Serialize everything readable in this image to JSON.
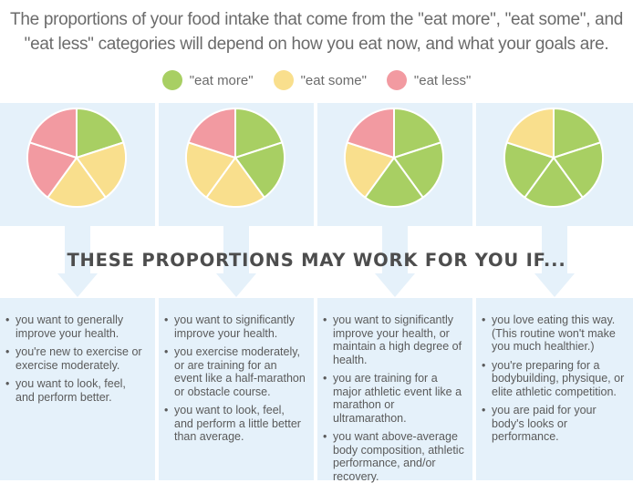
{
  "intro": {
    "line1": "The proportions of your food intake that come from the \"eat more\", \"eat some\", and",
    "line2": "\"eat less\" categories will depend on how you eat now, and what your goals are."
  },
  "legend": [
    {
      "label": "\"eat more\"",
      "color": "#a8cf63"
    },
    {
      "label": "\"eat some\"",
      "color": "#f9df8d"
    },
    {
      "label": "\"eat less\"",
      "color": "#f29aa1"
    }
  ],
  "headline": "THESE PROPORTIONS MAY WORK FOR YOU IF...",
  "chart_data": [
    {
      "type": "pie",
      "categories": [
        "\"eat more\"",
        "\"eat some\"",
        "\"eat less\""
      ],
      "values": [
        20,
        40,
        40
      ]
    },
    {
      "type": "pie",
      "categories": [
        "\"eat more\"",
        "\"eat some\"",
        "\"eat less\""
      ],
      "values": [
        40,
        40,
        20
      ]
    },
    {
      "type": "pie",
      "categories": [
        "\"eat more\"",
        "\"eat some\"",
        "\"eat less\""
      ],
      "values": [
        60,
        20,
        20
      ]
    },
    {
      "type": "pie",
      "categories": [
        "\"eat more\"",
        "\"eat some\"",
        "\"eat less\""
      ],
      "values": [
        80,
        20,
        0
      ]
    }
  ],
  "columns": [
    {
      "items": [
        "you want to generally improve your health.",
        "you're new to exercise or exercise moderately.",
        "you want to look, feel, and perform better."
      ]
    },
    {
      "items": [
        "you want to significantly improve your health.",
        "you exercise moderately, or are training for an event like a half-marathon or obstacle course.",
        "you want to look, feel, and perform a little better than average."
      ]
    },
    {
      "items": [
        "you want to significantly improve your health, or maintain a high degree of health.",
        "you are training for a major athletic event like a marathon or ultramarathon.",
        "you want above-average body composition, athletic performance, and/or recovery."
      ]
    },
    {
      "items": [
        "you love eating this way. (This routine won't make you much healthier.)",
        "you're preparing for a bodybuilding, physique, or elite athletic competition.",
        "you are paid for your body's looks or performance."
      ]
    }
  ]
}
